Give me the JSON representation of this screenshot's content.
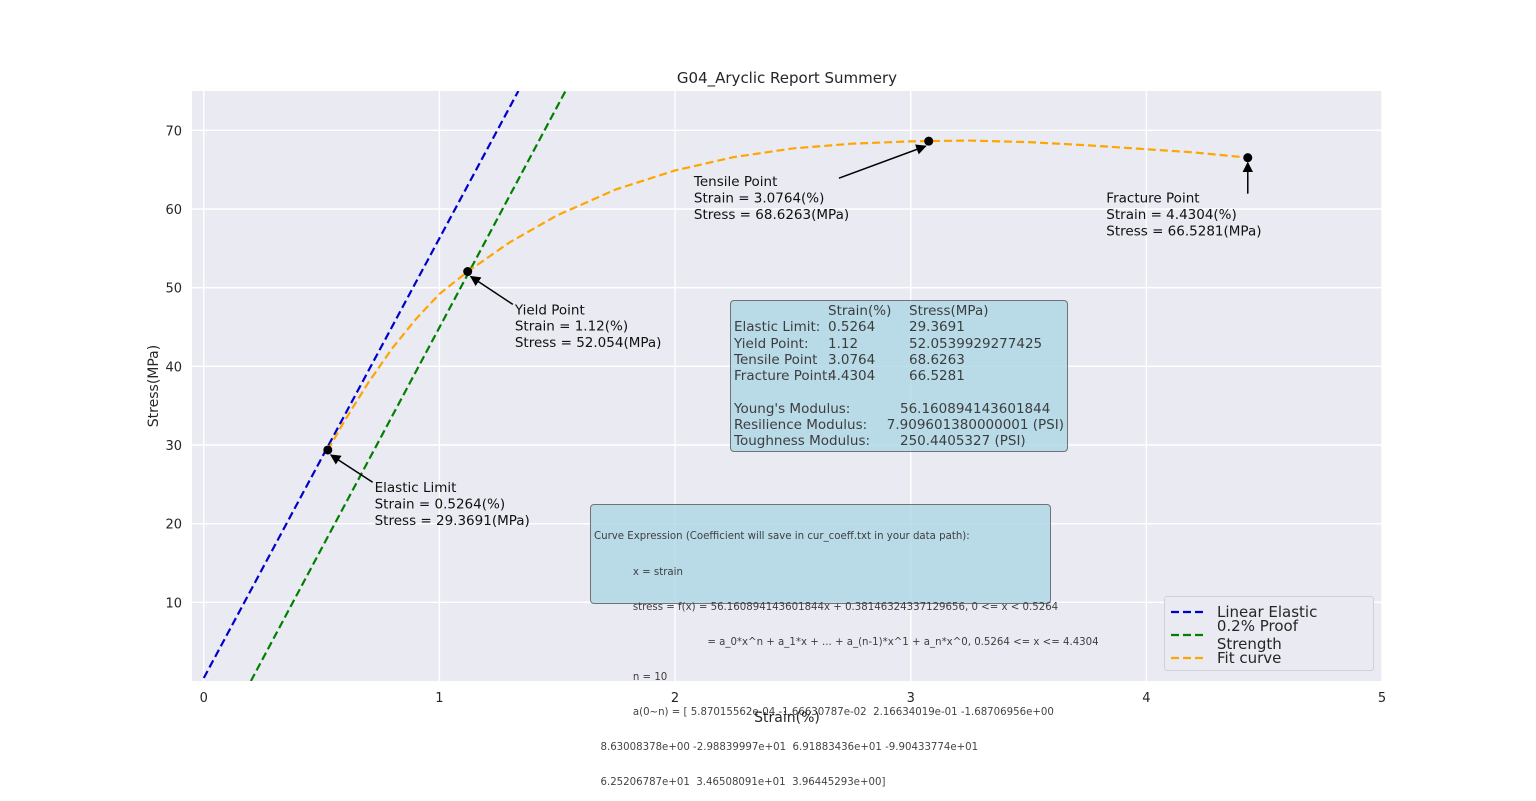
{
  "chart_data": {
    "type": "line",
    "title": "G04_Aryclic Report Summery",
    "xlabel": "Strain(%)",
    "ylabel": "Stress(MPa)",
    "xlim": [
      -0.05,
      5.0
    ],
    "ylim": [
      0,
      75
    ],
    "grid": true,
    "x_ticks": [
      0,
      1,
      2,
      3,
      4,
      5
    ],
    "y_ticks": [
      10,
      20,
      30,
      40,
      50,
      60,
      70
    ],
    "series": [
      {
        "name": "Linear Elastic",
        "color": "#0000cc",
        "style": "dashed",
        "x": [
          0,
          1.335
        ],
        "y": [
          0.38,
          75
        ]
      },
      {
        "name": "0.2% Proof Strength",
        "color": "#008000",
        "style": "dashed",
        "x": [
          0.2,
          1.535
        ],
        "y": [
          0,
          75
        ]
      },
      {
        "name": "Fit curve",
        "color": "#ffa500",
        "style": "dashed",
        "x": [
          0.5264,
          0.6,
          0.7,
          0.8,
          0.9,
          1.0,
          1.12,
          1.3,
          1.5,
          1.75,
          2.0,
          2.25,
          2.5,
          2.75,
          3.0,
          3.0764,
          3.25,
          3.5,
          3.75,
          4.0,
          4.2,
          4.4304
        ],
        "y": [
          29.37,
          33.2,
          38.0,
          42.3,
          46.0,
          49.2,
          52.05,
          55.8,
          59.2,
          62.5,
          64.9,
          66.6,
          67.7,
          68.3,
          68.6,
          68.63,
          68.7,
          68.5,
          68.1,
          67.6,
          67.2,
          66.53
        ]
      }
    ],
    "points": [
      {
        "name": "Elastic Limit",
        "x": 0.5264,
        "y": 29.3691,
        "lines": [
          "Elastic Limit",
          "Strain = 0.5264(%)",
          "Stress = 29.3691(MPa)"
        ],
        "text_x": 0.725,
        "text_y": 24.0
      },
      {
        "name": "Yield Point",
        "x": 1.12,
        "y": 52.054,
        "lines": [
          "Yield Point",
          "Strain = 1.12(%)",
          "Stress = 52.054(MPa)"
        ],
        "text_x": 1.32,
        "text_y": 46.6
      },
      {
        "name": "Tensile Point",
        "x": 3.0764,
        "y": 68.6263,
        "lines": [
          "Tensile Point",
          "Strain = 3.0764(%)",
          "Stress = 68.6263(MPa)"
        ],
        "text_x": 2.08,
        "text_y": 62.9
      },
      {
        "name": "Fracture Point",
        "x": 4.4304,
        "y": 66.5281,
        "lines": [
          "Fracture Point",
          "Strain = 4.4304(%)",
          "Stress = 66.5281(MPa)"
        ],
        "text_x": 3.83,
        "text_y": 60.8
      }
    ],
    "legend_position": "lower-right",
    "background_color": "#eaeaf2"
  },
  "summary": {
    "header": [
      "",
      "Strain(%)",
      "Stress(MPa)"
    ],
    "rows": [
      [
        "Elastic Limit:",
        "0.5264",
        "29.3691"
      ],
      [
        "Yield Point:",
        "1.12",
        "52.0539929277425"
      ],
      [
        "Tensile Point",
        "3.0764",
        "68.6263"
      ],
      [
        "Fracture Point:",
        "4.4304",
        "66.5281"
      ]
    ],
    "moduli": [
      [
        "Young's Modulus:",
        "56.160894143601844"
      ],
      [
        "Resilience Modulus:",
        "7.909601380000001 (PSI)"
      ],
      [
        "Toughness Modulus:",
        "250.4405327 (PSI)"
      ]
    ]
  },
  "expression": {
    "lines": [
      "Curve Expression (Coefficient will save in cur_coeff.txt in your data path):",
      "            x = strain",
      "            stress = f(x) = 56.160894143601844x + 0.38146324337129656, 0 <= x < 0.5264",
      "                                   = a_0*x^n + a_1*x + ... + a_(n-1)*x^1 + a_n*x^0, 0.5264 <= x <= 4.4304",
      "            n = 10",
      "            a(0~n) = [ 5.87015562e-04 -1.66630787e-02  2.16634019e-01 -1.68706956e+00",
      "  8.63008378e+00 -2.98839997e+01  6.91883436e+01 -9.90433774e+01",
      "  6.25206787e+01  3.46508091e+01  3.96445293e+00]"
    ]
  }
}
